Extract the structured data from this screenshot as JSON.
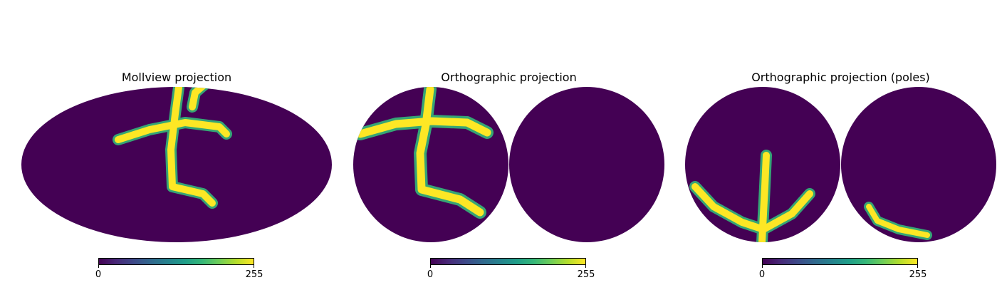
{
  "colors": {
    "background": "#440154",
    "stroke_high": "#fde725",
    "stroke_mid": "#35b779",
    "stroke_low": "#31688e"
  },
  "colormap": "viridis",
  "panels": [
    {
      "title": "Mollview projection",
      "colorbar": {
        "min_label": "0",
        "max_label": "255"
      }
    },
    {
      "title": "Orthographic projection",
      "colorbar": {
        "min_label": "0",
        "max_label": "255"
      }
    },
    {
      "title": "Orthographic projection (poles)",
      "colorbar": {
        "min_label": "0",
        "max_label": "255"
      }
    }
  ],
  "chart_data": [
    {
      "type": "heatmap",
      "projection": "mollweide",
      "title": "Mollview projection",
      "value_range": [
        0,
        255
      ],
      "colorbar": {
        "ticks": [
          0,
          255
        ]
      }
    },
    {
      "type": "heatmap",
      "projection": "orthographic",
      "title": "Orthographic projection",
      "value_range": [
        0,
        255
      ],
      "colorbar": {
        "ticks": [
          0,
          255
        ]
      }
    },
    {
      "type": "heatmap",
      "projection": "orthographic-poles",
      "title": "Orthographic projection (poles)",
      "value_range": [
        0,
        255
      ],
      "colorbar": {
        "ticks": [
          0,
          255
        ]
      }
    }
  ]
}
